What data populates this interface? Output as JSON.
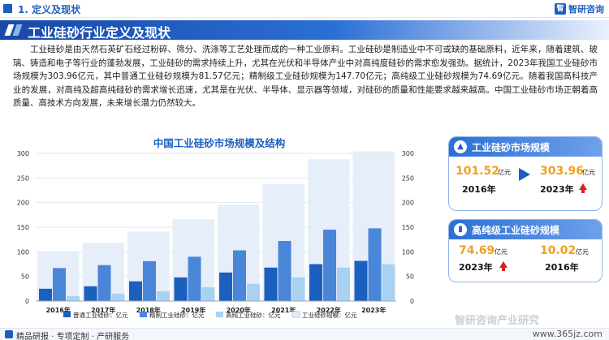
{
  "header": {
    "section": "1. 定义及现状",
    "brand": "智研咨询",
    "brand_logo": "智"
  },
  "title": "工业硅砂行业定义及现状",
  "paragraph": "工业硅砂是由天然石英矿石经过粉碎、筛分、洗涤等工艺处理而成的一种工业原料。工业硅砂是制造业中不可或缺的基础原料，近年来，随着建筑、玻璃、铸造和电子等行业的蓬勃发展，工业硅砂的需求持续上升，尤其在光伏和半导体产业中对高纯度硅砂的需求愈发强劲。据统计，2023年我国工业硅砂市场规模为303.96亿元，其中普通工业硅砂规模为81.57亿元；精制级工业硅砂规模为147.70亿元；高纯级工业硅砂规模为74.69亿元。随着我国高科技产业的发展，对高纯及超高纯硅砂的需求增长迅速，尤其是在光伏、半导体、显示器等领域，对硅砂的质量和性能要求越来越高。中国工业硅砂市场正朝着高质量、高技术方向发展，未来增长潜力仍然较大。",
  "panels": {
    "market": {
      "title": "工业硅砂市场规模",
      "icon": "chart-icon",
      "from_value": "101.52",
      "from_unit": "亿元",
      "from_year": "2016年",
      "to_value": "303.96",
      "to_unit": "亿元",
      "to_year": "2023年"
    },
    "high": {
      "title": "高纯级工业硅砂规模",
      "icon": "bar-icon",
      "left_value": "74.69",
      "left_unit": "亿元",
      "left_year": "2023年",
      "right_value": "10.02",
      "right_unit": "亿元",
      "right_year": "2016年"
    }
  },
  "footer": {
    "text": "精品研报 · 专项定制 · 产研服务",
    "url": "www.365jz.com",
    "watermark": "智研咨询产业研究"
  },
  "colors": {
    "ordinary": "#1b5fbf",
    "refined": "#4a86d8",
    "high": "#a9d2f2",
    "total": "#e6eef9",
    "accent": "#f0a020",
    "up": "#d62020"
  },
  "chart_data": {
    "type": "bar",
    "title": "中国工业硅砂市场规模及结构",
    "categories": [
      "2016年",
      "2017年",
      "2018年",
      "2019年",
      "2020年",
      "2021年",
      "2022年",
      "2023年"
    ],
    "series": [
      {
        "name": "普通工业硅砂：亿元",
        "values": [
          25,
          30,
          40,
          48,
          58,
          68,
          75,
          81.57
        ]
      },
      {
        "name": "精制工业硅砂：亿元",
        "values": [
          67,
          73,
          81,
          90,
          103,
          122,
          145,
          147.7
        ]
      },
      {
        "name": "高纯工业硅砂：亿元",
        "values": [
          10.02,
          15,
          20,
          28,
          35,
          48,
          68,
          74.69
        ]
      },
      {
        "name": "工业硅砂规模：亿元",
        "values": [
          101.52,
          118,
          141,
          166,
          196,
          238,
          288,
          303.96
        ]
      }
    ],
    "yticks": [
      "0",
      "50",
      "100",
      "150",
      "200",
      "250",
      "300"
    ],
    "ylim": [
      0,
      300
    ],
    "legend": "bottom"
  }
}
